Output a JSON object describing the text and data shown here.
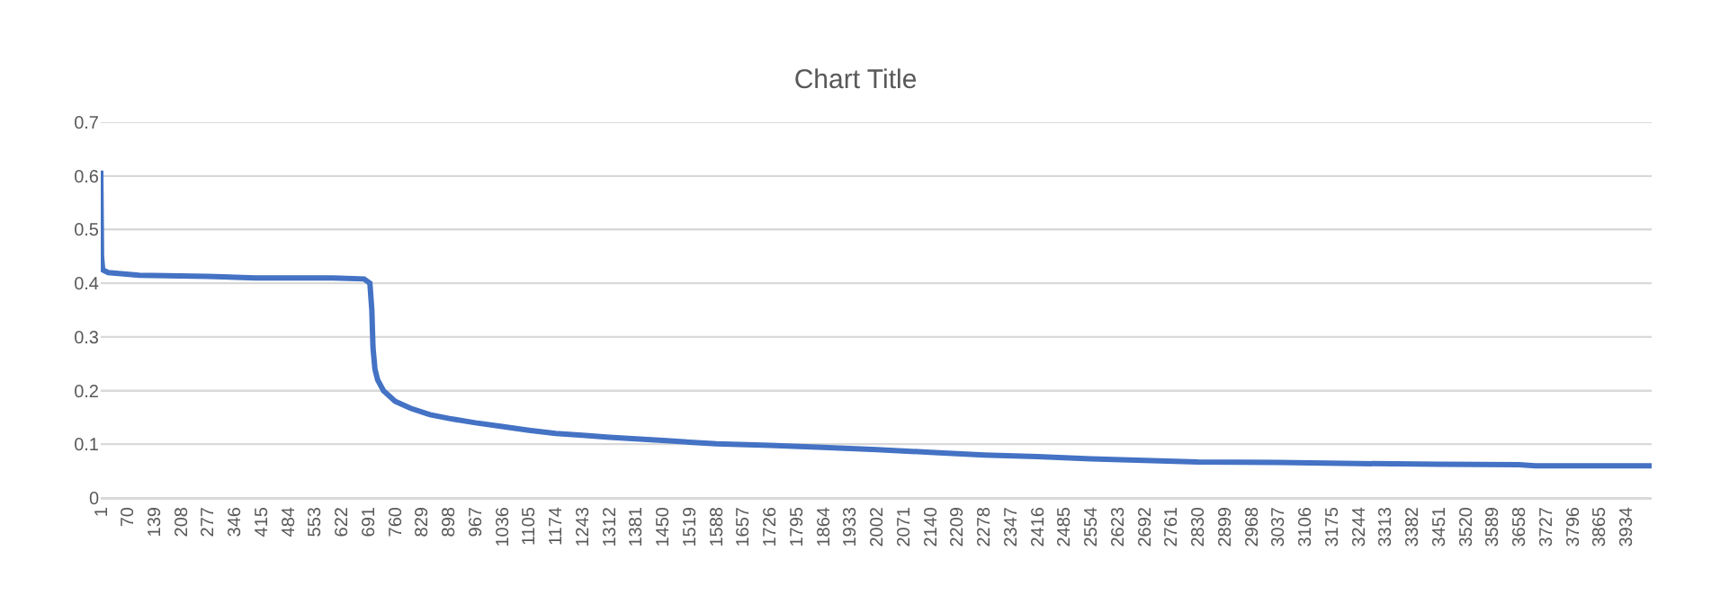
{
  "chart_data": {
    "type": "line",
    "title": "Chart Title",
    "series": [
      {
        "color": "#4472c4",
        "x": [
          1,
          3,
          6,
          20,
          100,
          277,
          400,
          600,
          680,
          695,
          700,
          703,
          708,
          715,
          730,
          760,
          800,
          850,
          900,
          967,
          1036,
          1105,
          1174,
          1243,
          1312,
          1381,
          1450,
          1519,
          1588,
          1726,
          1864,
          2002,
          2140,
          2278,
          2416,
          2554,
          2692,
          2830,
          3037,
          3244,
          3451,
          3658,
          3700,
          4000
        ],
        "values": [
          0.61,
          0.45,
          0.425,
          0.42,
          0.415,
          0.413,
          0.41,
          0.41,
          0.408,
          0.4,
          0.35,
          0.28,
          0.24,
          0.22,
          0.2,
          0.18,
          0.167,
          0.155,
          0.148,
          0.14,
          0.133,
          0.126,
          0.12,
          0.117,
          0.113,
          0.11,
          0.107,
          0.104,
          0.101,
          0.098,
          0.094,
          0.09,
          0.085,
          0.08,
          0.077,
          0.073,
          0.07,
          0.067,
          0.066,
          0.064,
          0.063,
          0.062,
          0.06,
          0.06
        ]
      }
    ],
    "xlim": [
      1,
      4000
    ],
    "xticks": [
      1,
      70,
      139,
      208,
      277,
      346,
      415,
      484,
      553,
      622,
      691,
      760,
      829,
      898,
      967,
      1036,
      1105,
      1174,
      1243,
      1312,
      1381,
      1450,
      1519,
      1588,
      1657,
      1726,
      1795,
      1864,
      1933,
      2002,
      2071,
      2140,
      2209,
      2278,
      2347,
      2416,
      2485,
      2554,
      2623,
      2692,
      2761,
      2830,
      2899,
      2968,
      3037,
      3106,
      3175,
      3244,
      3313,
      3382,
      3451,
      3520,
      3589,
      3658,
      3727,
      3796,
      3865,
      3934
    ],
    "ylim": [
      0,
      0.7
    ],
    "yticks": [
      0,
      0.1,
      0.2,
      0.3,
      0.4,
      0.5,
      0.6,
      0.7
    ],
    "grid": "y",
    "marker": "none",
    "line_style": "solid"
  }
}
